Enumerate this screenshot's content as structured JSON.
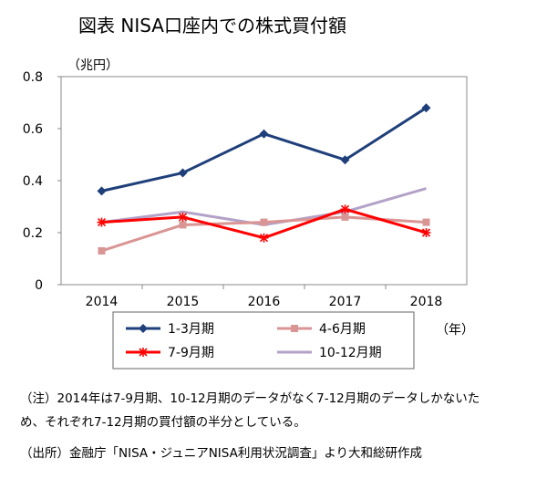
{
  "title": "図表  NISA口座内での株式買付額",
  "chart_data": {
    "type": "line",
    "title": "図表  NISA口座内での株式買付額",
    "y_unit_label": "（兆円）",
    "x_unit_label": "（年）",
    "categories": [
      "2014",
      "2015",
      "2016",
      "2017",
      "2018"
    ],
    "y_ticks": [
      "0",
      "0.2",
      "0.4",
      "0.6",
      "0.8"
    ],
    "ylim": [
      0,
      0.8
    ],
    "grid": false,
    "legend_position": "bottom",
    "series": [
      {
        "name": "1-3月期",
        "values": [
          null,
          0.43,
          0.58,
          0.48,
          0.68
        ],
        "color": "#1f3f7a",
        "marker": "diamond"
      },
      {
        "name": "4-6月期",
        "values": [
          0.13,
          0.23,
          0.24,
          0.26,
          0.24
        ],
        "color": "#d99594",
        "marker": "square"
      },
      {
        "name": "7-9月期",
        "values": [
          0.24,
          0.26,
          0.18,
          0.29,
          0.2
        ],
        "color": "#ff0000",
        "marker": "star"
      },
      {
        "name": "10-12月期",
        "values": [
          0.24,
          0.28,
          0.23,
          0.28,
          0.37
        ],
        "color": "#b3a2c7",
        "marker": "none"
      }
    ],
    "extra_points": [
      {
        "series": "1-3月期",
        "category": "2014",
        "value": 0.36
      }
    ]
  },
  "notes": {
    "line1": "（注）2014年は7-9月期、10-12月期のデータがなく7-12月期のデータしかないた",
    "line2": "め、それぞれ7-12月期の買付額の半分としている。",
    "source": "（出所）金融庁「NISA・ジュニアNISA利用状況調査」より大和総研作成"
  }
}
